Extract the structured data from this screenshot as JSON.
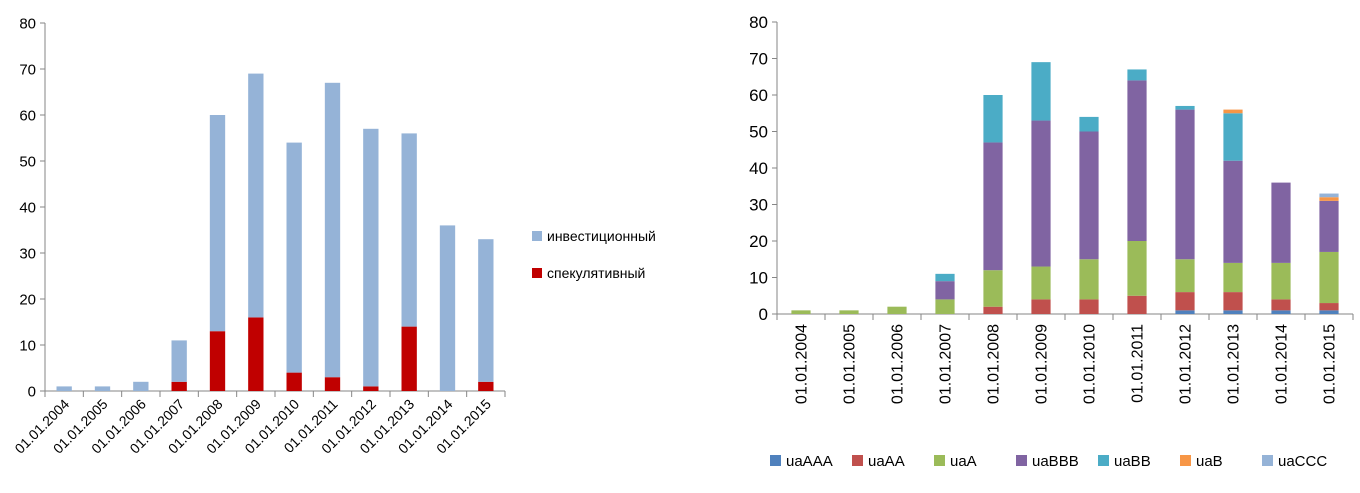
{
  "chart_data": [
    {
      "type": "bar",
      "stacked": true,
      "categories": [
        "01.01.2004",
        "01.01.2005",
        "01.01.2006",
        "01.01.2007",
        "01.01.2008",
        "01.01.2009",
        "01.01.2010",
        "01.01.2011",
        "01.01.2012",
        "01.01.2013",
        "01.01.2014",
        "01.01.2015"
      ],
      "series": [
        {
          "name": "спекулятивный",
          "color": "#c00000",
          "values": [
            0,
            0,
            0,
            2,
            13,
            16,
            4,
            3,
            1,
            14,
            0,
            2
          ]
        },
        {
          "name": "инвестиционный",
          "color": "#95b3d7",
          "values": [
            1,
            1,
            2,
            9,
            47,
            53,
            50,
            64,
            56,
            42,
            36,
            31
          ]
        }
      ],
      "legend_order": [
        "инвестиционный",
        "спекулятивный"
      ],
      "yticks": [
        "0",
        "10",
        "20",
        "30",
        "40",
        "50",
        "60",
        "70",
        "80"
      ],
      "ylim": [
        0,
        80
      ],
      "grid": false,
      "legend_position": "right",
      "title": "",
      "xlabel": "",
      "ylabel": ""
    },
    {
      "type": "bar",
      "stacked": true,
      "categories": [
        "01.01.2004",
        "01.01.2005",
        "01.01.2006",
        "01.01.2007",
        "01.01.2008",
        "01.01.2009",
        "01.01.2010",
        "01.01.2011",
        "01.01.2012",
        "01.01.2013",
        "01.01.2014",
        "01.01.2015"
      ],
      "series": [
        {
          "name": "uaAAA",
          "color": "#4f81bd",
          "values": [
            0,
            0,
            0,
            0,
            0,
            0,
            0,
            0,
            1,
            1,
            1,
            1
          ]
        },
        {
          "name": "uaAA",
          "color": "#c0504d",
          "values": [
            0,
            0,
            0,
            0,
            2,
            4,
            4,
            5,
            5,
            5,
            3,
            2
          ]
        },
        {
          "name": "uaA",
          "color": "#9bbb59",
          "values": [
            1,
            1,
            2,
            4,
            10,
            9,
            11,
            15,
            9,
            8,
            10,
            14
          ]
        },
        {
          "name": "uaBBB",
          "color": "#8064a2",
          "values": [
            0,
            0,
            0,
            5,
            35,
            40,
            35,
            44,
            41,
            28,
            22,
            14
          ]
        },
        {
          "name": "uaBB",
          "color": "#4bacc6",
          "values": [
            0,
            0,
            0,
            2,
            13,
            16,
            4,
            3,
            1,
            13,
            0,
            0
          ]
        },
        {
          "name": "uaB",
          "color": "#f79646",
          "values": [
            0,
            0,
            0,
            0,
            0,
            0,
            0,
            0,
            0,
            1,
            0,
            1
          ]
        },
        {
          "name": "uaCCC",
          "color": "#95b3d7",
          "values": [
            0,
            0,
            0,
            0,
            0,
            0,
            0,
            0,
            0,
            0,
            0,
            1
          ]
        }
      ],
      "yticks": [
        "0",
        "10",
        "20",
        "30",
        "40",
        "50",
        "60",
        "70",
        "80"
      ],
      "ylim": [
        0,
        80
      ],
      "grid": false,
      "legend_position": "bottom",
      "title": "",
      "xlabel": "",
      "ylabel": ""
    }
  ]
}
